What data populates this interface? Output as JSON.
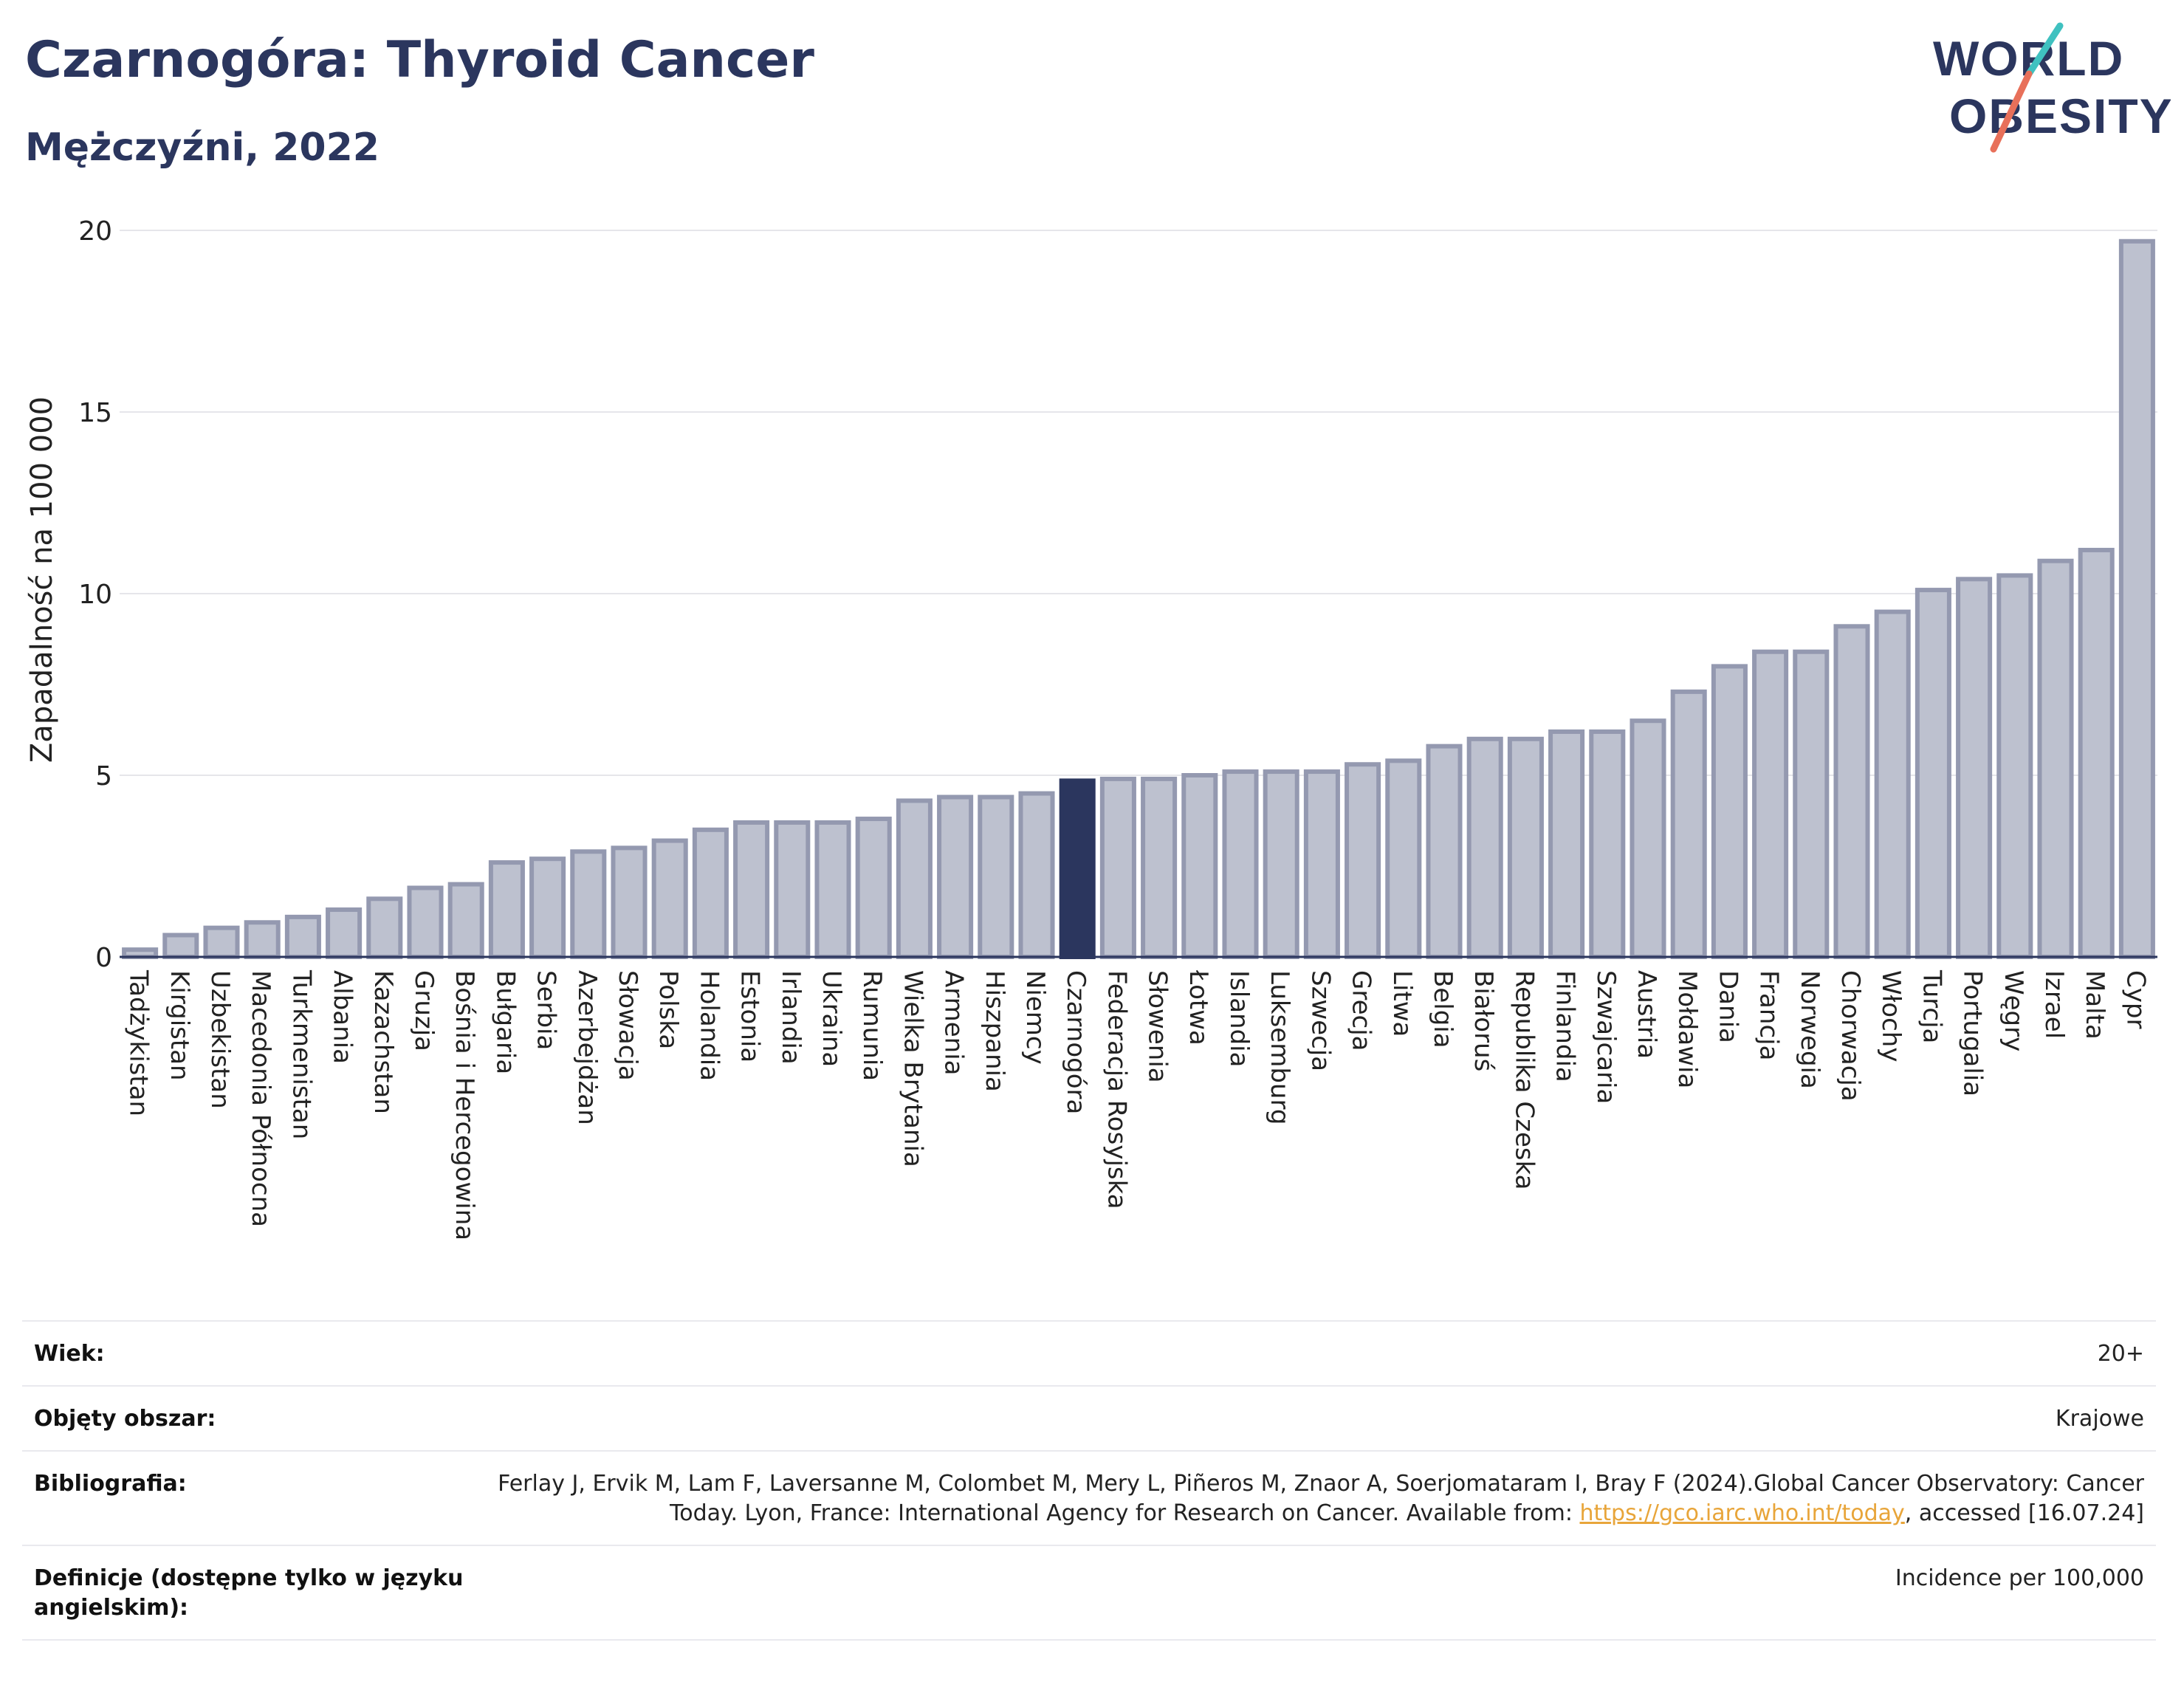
{
  "title": "Czarnogóra: Thyroid Cancer",
  "subtitle": "Mężczyźni, 2022",
  "logo": {
    "line1": "WORLD",
    "line2": "OBESITY"
  },
  "colors": {
    "bar": "#bdc1cf",
    "bar_border": "#9499b0",
    "highlight": "#2b365e",
    "text_dark": "#2b365e",
    "link": "#e8a53a",
    "grid": "#e6e6ea"
  },
  "chart_data": {
    "type": "bar",
    "ylabel": "Zapadalność na 100 000",
    "ylim": [
      0,
      20
    ],
    "yticks": [
      0,
      5,
      10,
      15,
      20
    ],
    "highlight": "Czarnogóra",
    "categories": [
      "Tadżykistan",
      "Kirgistan",
      "Uzbekistan",
      "Macedonia Północna",
      "Turkmenistan",
      "Albania",
      "Kazachstan",
      "Gruzja",
      "Bośnia i Hercegowina",
      "Bułgaria",
      "Serbia",
      "Azerbejdżan",
      "Słowacja",
      "Polska",
      "Holandia",
      "Estonia",
      "Irlandia",
      "Ukraina",
      "Rumunia",
      "Wielka Brytania",
      "Armenia",
      "Hiszpania",
      "Niemcy",
      "Czarnogóra",
      "Federacja Rosyjska",
      "Słowenia",
      "Łotwa",
      "Islandia",
      "Luksemburg",
      "Szwecja",
      "Grecja",
      "Litwa",
      "Belgia",
      "Białoruś",
      "Republika Czeska",
      "Finlandia",
      "Szwajcaria",
      "Austria",
      "Mołdawia",
      "Dania",
      "Francja",
      "Norwegia",
      "Chorwacja",
      "Włochy",
      "Turcja",
      "Portugalia",
      "Węgry",
      "Izrael",
      "Malta",
      "Cypr"
    ],
    "values": [
      0.2,
      0.6,
      0.8,
      0.95,
      1.1,
      1.3,
      1.6,
      1.9,
      2.0,
      2.6,
      2.7,
      2.9,
      3.0,
      3.2,
      3.5,
      3.7,
      3.7,
      3.7,
      3.8,
      4.3,
      4.4,
      4.4,
      4.5,
      4.85,
      4.9,
      4.9,
      5.0,
      5.1,
      5.1,
      5.1,
      5.3,
      5.4,
      5.8,
      6.0,
      6.0,
      6.2,
      6.2,
      6.5,
      7.3,
      8.0,
      8.4,
      8.4,
      9.1,
      9.5,
      10.1,
      10.4,
      10.5,
      10.9,
      11.2,
      19.7
    ]
  },
  "info": {
    "age_label": "Wiek:",
    "age_value": "20+",
    "area_label": "Objęty obszar:",
    "area_value": "Krajowe",
    "bib_label": "Bibliografia:",
    "bib_text": "Ferlay J, Ervik M, Lam F, Laversanne M, Colombet M, Mery L, Piñeros M, Znaor A, Soerjomataram I, Bray F (2024).Global Cancer Observatory: Cancer Today. Lyon, France: International Agency for Research on Cancer. Available from: ",
    "bib_link": "https://gco.iarc.who.int/today",
    "bib_tail": ", accessed [16.07.24]",
    "def_label": "Definicje (dostępne tylko w języku angielskim):",
    "def_value": "Incidence per 100,000"
  }
}
